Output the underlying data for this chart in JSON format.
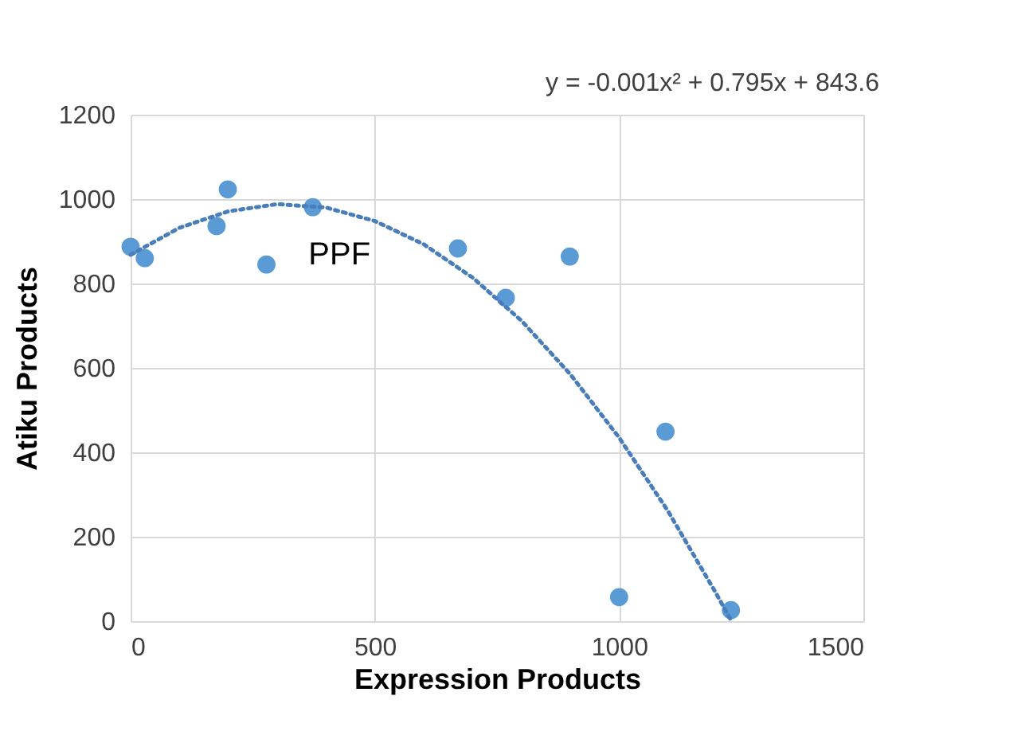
{
  "chart_data": {
    "type": "scatter",
    "xlabel": "Expression Products",
    "ylabel": "Atiku Products",
    "xlim": [
      0,
      1500
    ],
    "xticks": [
      0,
      500,
      1000,
      1500
    ],
    "ylim": [
      0,
      1200
    ],
    "yticks": [
      0,
      200,
      400,
      600,
      800,
      1000,
      1200
    ],
    "grid": true,
    "marker": "circle",
    "annotations": [
      "y = -0.001x² + 0.795x + 843.6",
      "PPF"
    ],
    "series": [
      {
        "color": "#5b9bd5",
        "x": [
          0,
          29,
          176,
          199,
          278,
          373,
          670,
          768,
          899,
          1000,
          1095,
          1229
        ],
        "values": [
          887,
          860,
          936,
          1023,
          845,
          981,
          883,
          766,
          864,
          57,
          449,
          26
        ]
      },
      {
        "type": "line",
        "color": "#4a7ebb",
        "line_style": "dotted",
        "marker": "none",
        "x": [
          0,
          100,
          200,
          300,
          400,
          500,
          600,
          700,
          800,
          900,
          1000,
          1100,
          1200,
          1230
        ],
        "values": [
          868,
          932,
          971,
          988,
          980,
          948,
          893,
          814,
          712,
          585,
          435,
          261,
          63,
          0
        ]
      }
    ]
  }
}
